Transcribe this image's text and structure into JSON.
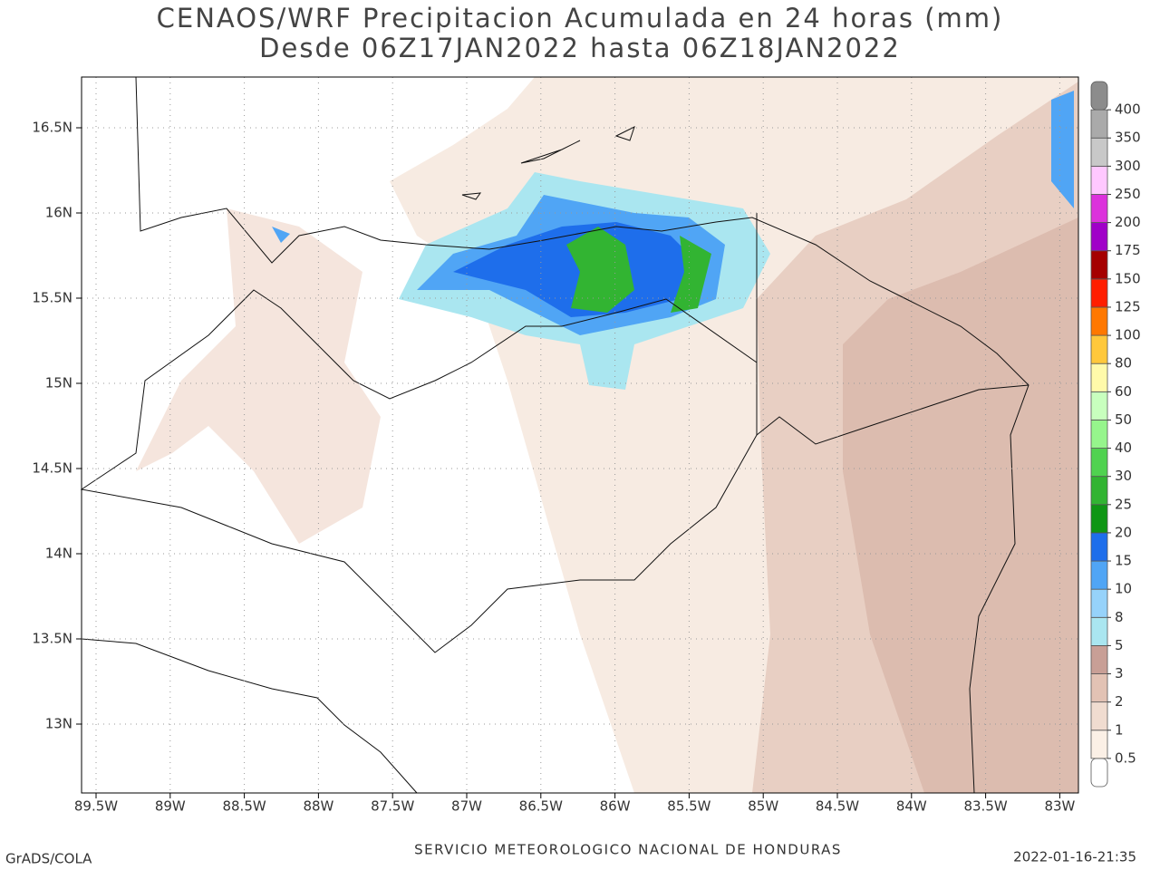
{
  "header": {
    "title": "CENAOS/WRF Precipitacion Acumulada en 24 horas (mm)",
    "subtitle": "Desde 06Z17JAN2022 hasta 06Z18JAN2022"
  },
  "map": {
    "yticks": [
      "16.5N",
      "16N",
      "15.5N",
      "15N",
      "14.5N",
      "14N",
      "13.5N",
      "13N"
    ],
    "xticks": [
      "89.5W",
      "89W",
      "88.5W",
      "88W",
      "87.5W",
      "87W",
      "86.5W",
      "86W",
      "85.5W",
      "85W",
      "84.5W",
      "84W",
      "83.5W",
      "83W"
    ]
  },
  "colorbar": {
    "labels": [
      0.5,
      1,
      2,
      3,
      5,
      8,
      10,
      15,
      20,
      25,
      30,
      40,
      50,
      60,
      80,
      100,
      125,
      150,
      175,
      200,
      250,
      300,
      350,
      400
    ],
    "colors": [
      "#ffffff",
      "#fbf0e6",
      "#f0dcd0",
      "#e2c2b4",
      "#c89f96",
      "#aae6f0",
      "#96d2fa",
      "#50a5f5",
      "#1e6eeb",
      "#0f9614",
      "#32b432",
      "#50d250",
      "#96f58c",
      "#c8ffbe",
      "#fffaaa",
      "#ffc83c",
      "#ff7800",
      "#ff1e00",
      "#a50000",
      "#a000c8",
      "#dc32dc",
      "#ffc8ff",
      "#c8c8c8",
      "#aaaaaa",
      "#8c8c8c"
    ]
  },
  "footer": {
    "left": "GrADS/COLA",
    "center": "SERVICIO METEOROLOGICO NACIONAL DE HONDURAS",
    "right": "2022-01-16-21:35"
  }
}
